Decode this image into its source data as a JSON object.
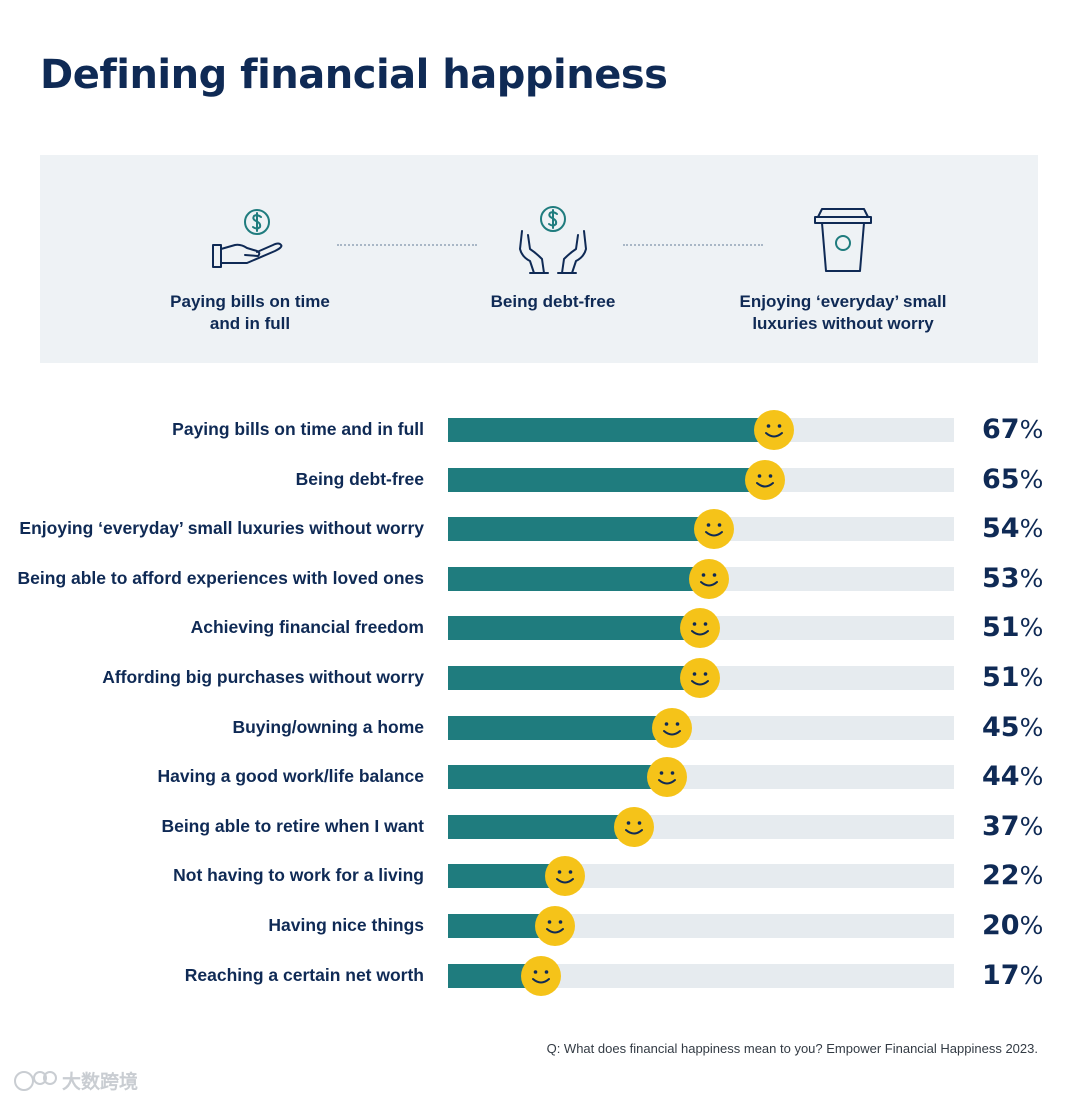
{
  "title": "Defining financial happiness",
  "colors": {
    "navy": "#0f2a55",
    "teal": "#1f7c7e",
    "track": "#e6ebef",
    "panel": "#eef2f5",
    "smiley": "#f5c319"
  },
  "features": [
    {
      "icon": "hand-dollar-icon",
      "label_line1": "Paying bills on time",
      "label_line2": "and in full"
    },
    {
      "icon": "hands-dollar-icon",
      "label_line1": "Being debt-free",
      "label_line2": ""
    },
    {
      "icon": "coffee-cup-icon",
      "label_line1": "Enjoying ‘everyday’ small",
      "label_line2": "luxuries without worry"
    }
  ],
  "chart_data": {
    "type": "bar",
    "orientation": "horizontal",
    "categories": [
      "Paying bills on time and in full",
      "Being debt-free",
      "Enjoying ‘everyday’ small luxuries without worry",
      "Being able to afford experiences with loved ones",
      "Achieving financial freedom",
      "Affording big purchases without worry",
      "Buying/owning a home",
      "Having a good work/life balance",
      "Being able to retire when I want",
      "Not having to work for a living",
      "Having nice things",
      "Reaching a certain net worth"
    ],
    "values": [
      67,
      65,
      54,
      53,
      51,
      51,
      45,
      44,
      37,
      22,
      20,
      17
    ],
    "value_unit": "%",
    "xlim": [
      0,
      100
    ],
    "marker_icon": "smiley-icon"
  },
  "source": "Q: What does financial happiness mean to you? Empower Financial Happiness 2023.",
  "watermark": "大数跨境"
}
